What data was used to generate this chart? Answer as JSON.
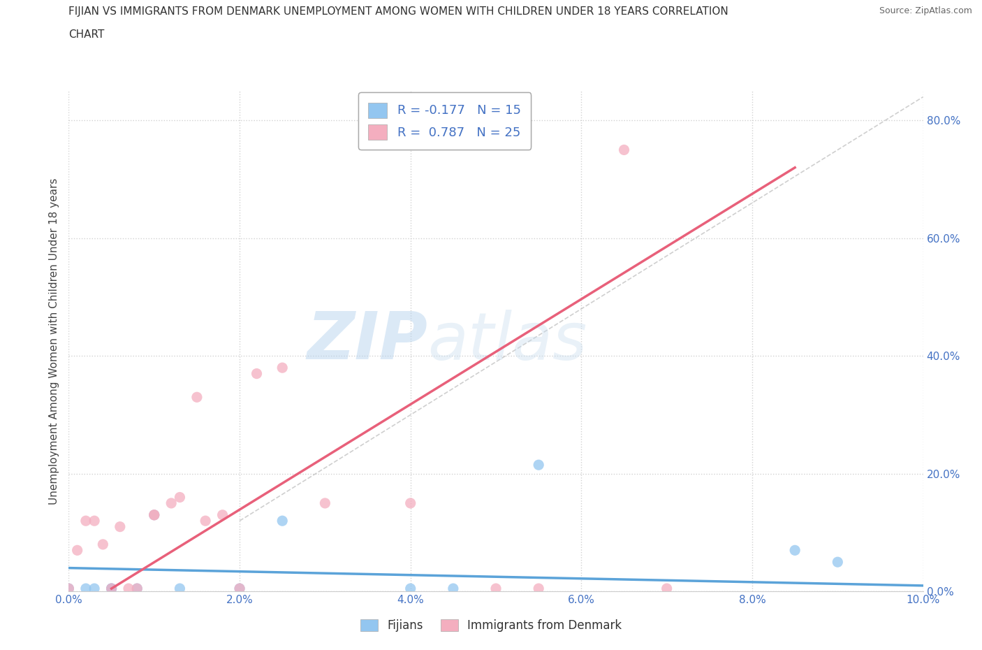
{
  "title_line1": "FIJIAN VS IMMIGRANTS FROM DENMARK UNEMPLOYMENT AMONG WOMEN WITH CHILDREN UNDER 18 YEARS CORRELATION",
  "title_line2": "CHART",
  "source": "Source: ZipAtlas.com",
  "ylabel": "Unemployment Among Women with Children Under 18 years",
  "xlim": [
    0.0,
    0.1
  ],
  "ylim": [
    0.0,
    0.85
  ],
  "ytick_labels": [
    "0.0%",
    "20.0%",
    "40.0%",
    "60.0%",
    "80.0%"
  ],
  "ytick_vals": [
    0.0,
    0.2,
    0.4,
    0.6,
    0.8
  ],
  "xtick_labels": [
    "0.0%",
    "2.0%",
    "4.0%",
    "6.0%",
    "8.0%",
    "10.0%"
  ],
  "xtick_vals": [
    0.0,
    0.02,
    0.04,
    0.06,
    0.08,
    0.1
  ],
  "fijian_color": "#93C6F0",
  "denmark_color": "#F4AEBF",
  "fijian_R": -0.177,
  "fijian_N": 15,
  "denmark_R": 0.787,
  "denmark_N": 25,
  "fijian_scatter_x": [
    0.0,
    0.002,
    0.003,
    0.005,
    0.005,
    0.008,
    0.01,
    0.013,
    0.02,
    0.025,
    0.04,
    0.045,
    0.055,
    0.085,
    0.09
  ],
  "fijian_scatter_y": [
    0.005,
    0.005,
    0.005,
    0.005,
    0.005,
    0.005,
    0.13,
    0.005,
    0.005,
    0.12,
    0.005,
    0.005,
    0.215,
    0.07,
    0.05
  ],
  "denmark_scatter_x": [
    0.0,
    0.001,
    0.002,
    0.003,
    0.004,
    0.005,
    0.006,
    0.007,
    0.008,
    0.01,
    0.01,
    0.012,
    0.013,
    0.015,
    0.016,
    0.018,
    0.02,
    0.022,
    0.025,
    0.03,
    0.04,
    0.05,
    0.055,
    0.065,
    0.07
  ],
  "denmark_scatter_y": [
    0.005,
    0.07,
    0.12,
    0.12,
    0.08,
    0.005,
    0.11,
    0.005,
    0.005,
    0.13,
    0.13,
    0.15,
    0.16,
    0.33,
    0.12,
    0.13,
    0.005,
    0.37,
    0.38,
    0.15,
    0.15,
    0.005,
    0.005,
    0.75,
    0.005
  ],
  "watermark_zip": "ZIP",
  "watermark_atlas": "atlas",
  "trend_fijian_color": "#5BA3D9",
  "trend_denmark_color": "#E8607A",
  "background_color": "#FFFFFF",
  "grid_color": "#CCCCCC",
  "tick_color": "#4472C4",
  "legend_text_color": "#4472C4"
}
